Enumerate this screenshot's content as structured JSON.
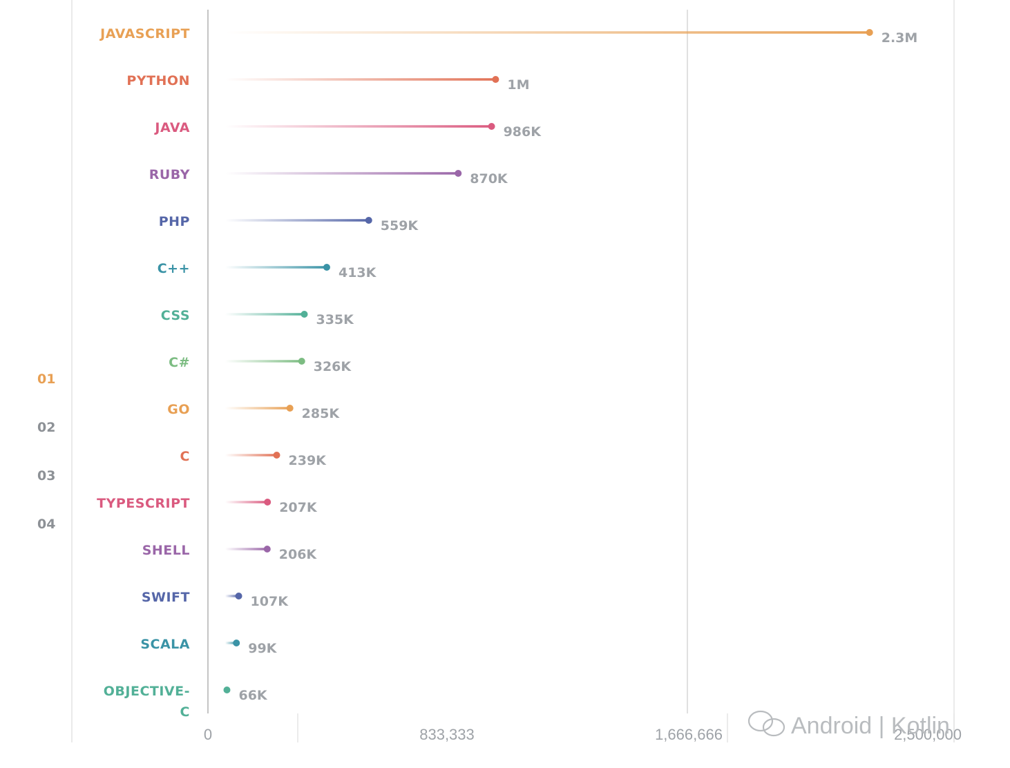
{
  "chart_data": {
    "type": "lollipop-bar",
    "orientation": "horizontal",
    "categories": [
      "JAVASCRIPT",
      "PYTHON",
      "JAVA",
      "RUBY",
      "PHP",
      "C++",
      "CSS",
      "C#",
      "GO",
      "C",
      "TYPESCRIPT",
      "SHELL",
      "SWIFT",
      "SCALA",
      "OBJECTIVE-C"
    ],
    "values": [
      2300000,
      1000000,
      986000,
      870000,
      559000,
      413000,
      335000,
      326000,
      285000,
      239000,
      207000,
      206000,
      107000,
      99000,
      66000
    ],
    "value_labels": [
      "2.3M",
      "1M",
      "986K",
      "870K",
      "559K",
      "413K",
      "335K",
      "326K",
      "285K",
      "239K",
      "207K",
      "206K",
      "107K",
      "99K",
      "66K"
    ],
    "colors": [
      "#e8a054",
      "#e17155",
      "#da5a7f",
      "#9a66a8",
      "#5566a8",
      "#3a93a6",
      "#52b097",
      "#7cbc82",
      "#e8a054",
      "#e17155",
      "#da5a7f",
      "#9a66a8",
      "#5566a8",
      "#3a93a6",
      "#52b097"
    ],
    "x_ticks": [
      0,
      833333,
      1666666,
      2500000
    ],
    "x_tick_labels": [
      "0",
      "833,333",
      "1,666,666",
      "2,500,000"
    ],
    "xlim": [
      0,
      2500000
    ],
    "ranks": [
      {
        "label": "01",
        "color": "#e8a054"
      },
      {
        "label": "02",
        "color": "#8d9196"
      },
      {
        "label": "03",
        "color": "#8d9196"
      },
      {
        "label": "04",
        "color": "#8d9196"
      }
    ],
    "watermark": "Android | Kotlin"
  }
}
